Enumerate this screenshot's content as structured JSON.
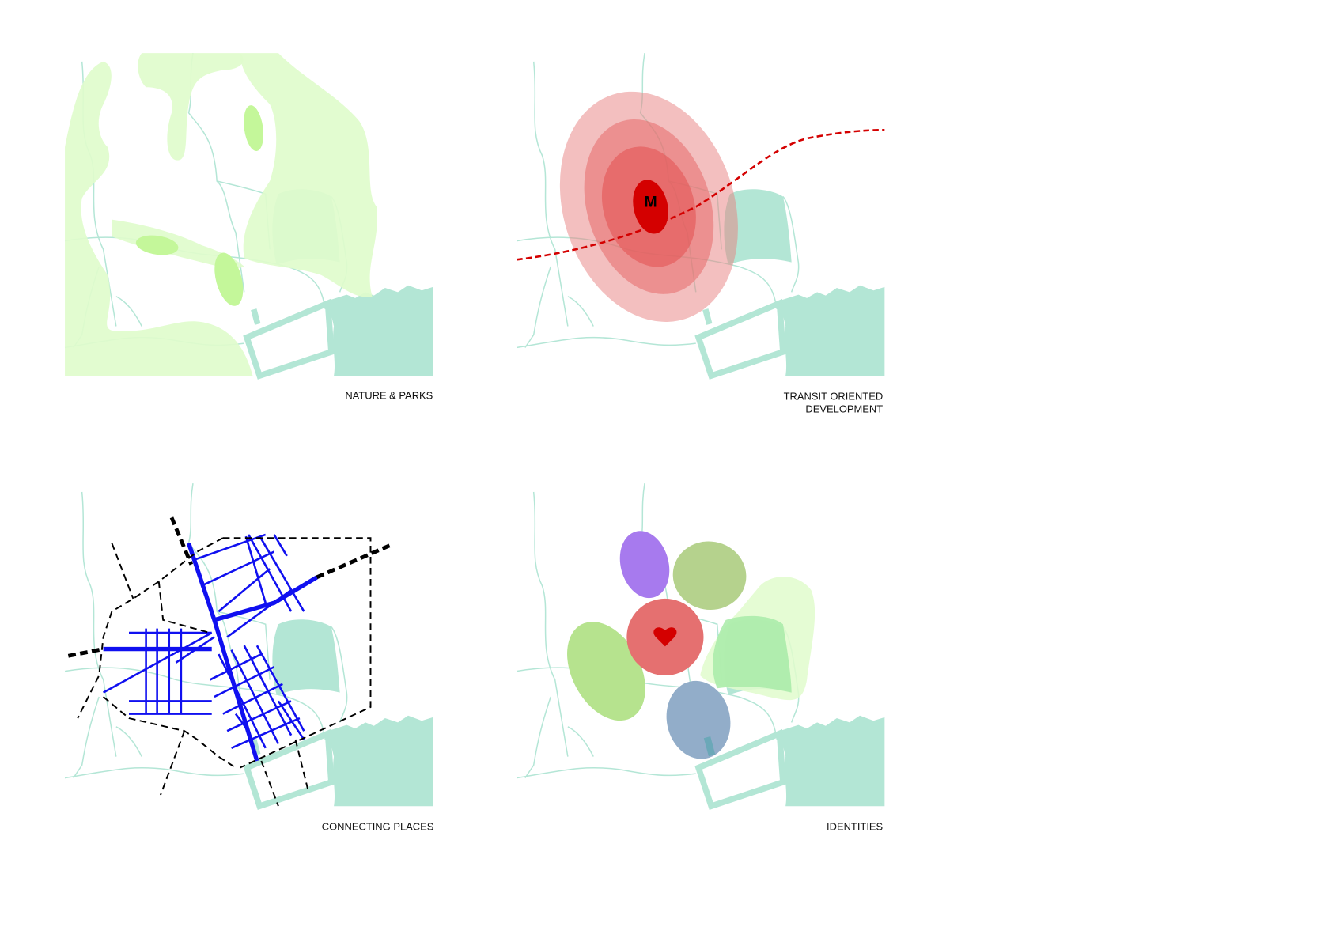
{
  "panels": [
    {
      "label": "NATURE & PARKS"
    },
    {
      "label_line1": "TRANSIT ORIENTED",
      "label_line2": "DEVELOPMENT",
      "station_letter": "M"
    },
    {
      "label": "CONNECTING PLACES"
    },
    {
      "label": "IDENTITIES",
      "center_icon": "heart-icon"
    }
  ],
  "colors": {
    "water": "#b3e6d5",
    "park_pale": "#e0fccc",
    "park_bright": "#c4f79a",
    "transit_red": "#d40000",
    "streets_blue": "#1010f0"
  }
}
